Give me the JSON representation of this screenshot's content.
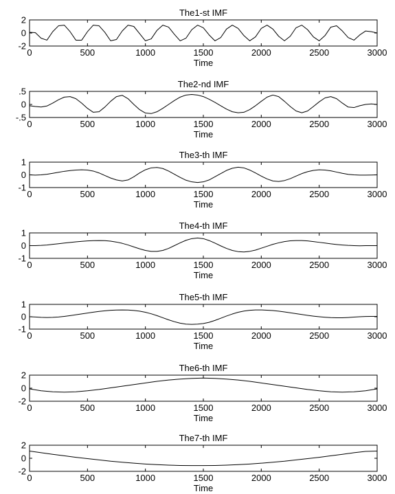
{
  "chart_data": [
    {
      "type": "line",
      "title": "The1-st IMF",
      "xlabel": "Time",
      "ylabel": "",
      "xlim": [
        0,
        3000
      ],
      "ylim": [
        -2,
        2
      ],
      "xticks": [
        0,
        500,
        1000,
        1500,
        2000,
        2500,
        3000
      ],
      "yticks": [
        -2,
        0,
        2
      ],
      "grid": false,
      "series": [
        {
          "color": "#000000",
          "x": [
            0,
            50,
            100,
            150,
            200,
            250,
            300,
            350,
            400,
            450,
            500,
            550,
            600,
            650,
            700,
            750,
            800,
            850,
            900,
            950,
            1000,
            1050,
            1100,
            1150,
            1200,
            1250,
            1300,
            1350,
            1400,
            1450,
            1500,
            1550,
            1600,
            1650,
            1700,
            1750,
            1800,
            1850,
            1900,
            1950,
            2000,
            2050,
            2100,
            2150,
            2200,
            2250,
            2300,
            2350,
            2400,
            2450,
            2500,
            2550,
            2600,
            2650,
            2700,
            2750,
            2800,
            2850,
            2900,
            2950,
            3000
          ],
          "y": [
            0.1,
            0.05,
            -0.8,
            -1.1,
            0.2,
            1.1,
            1.2,
            0.2,
            -1.1,
            -1.1,
            0.2,
            1.2,
            1.1,
            0.1,
            -1.2,
            -1.0,
            0.3,
            1.2,
            1.0,
            -0.1,
            -1.2,
            -0.9,
            0.4,
            1.2,
            0.9,
            -0.2,
            -1.2,
            -0.8,
            0.5,
            1.2,
            0.8,
            -0.3,
            -1.2,
            -0.7,
            0.6,
            1.2,
            0.7,
            -0.4,
            -1.2,
            -0.6,
            0.7,
            1.2,
            0.6,
            -0.5,
            -1.2,
            -0.5,
            0.8,
            1.2,
            0.5,
            -0.6,
            -1.2,
            -0.4,
            0.9,
            1.1,
            0.3,
            -0.7,
            -1.1,
            -0.3,
            0.3,
            0.2,
            0.0
          ]
        }
      ]
    },
    {
      "type": "line",
      "title": "The2-nd IMF",
      "xlabel": "Time",
      "ylabel": "",
      "xlim": [
        0,
        3000
      ],
      "ylim": [
        -0.5,
        0.5
      ],
      "xticks": [
        0,
        500,
        1000,
        1500,
        2000,
        2500,
        3000
      ],
      "yticks": [
        -0.5,
        0,
        0.5
      ],
      "grid": false,
      "series": [
        {
          "color": "#000000",
          "x": [
            0,
            50,
            100,
            150,
            200,
            250,
            300,
            350,
            400,
            450,
            500,
            550,
            600,
            650,
            700,
            750,
            800,
            850,
            900,
            950,
            1000,
            1050,
            1100,
            1150,
            1200,
            1250,
            1300,
            1350,
            1400,
            1450,
            1500,
            1550,
            1600,
            1650,
            1700,
            1750,
            1800,
            1850,
            1900,
            1950,
            2000,
            2050,
            2100,
            2150,
            2200,
            2250,
            2300,
            2350,
            2400,
            2450,
            2500,
            2550,
            2600,
            2650,
            2700,
            2750,
            2800,
            2850,
            2900,
            2950,
            3000
          ],
          "y": [
            -0.05,
            -0.08,
            -0.1,
            -0.06,
            0.05,
            0.18,
            0.28,
            0.3,
            0.22,
            0.05,
            -0.15,
            -0.3,
            -0.28,
            -0.1,
            0.12,
            0.3,
            0.35,
            0.22,
            0.0,
            -0.2,
            -0.33,
            -0.35,
            -0.28,
            -0.15,
            0.0,
            0.15,
            0.28,
            0.36,
            0.38,
            0.36,
            0.3,
            0.2,
            0.08,
            -0.05,
            -0.18,
            -0.28,
            -0.32,
            -0.3,
            -0.2,
            -0.05,
            0.12,
            0.28,
            0.36,
            0.3,
            0.12,
            -0.08,
            -0.25,
            -0.32,
            -0.25,
            -0.08,
            0.1,
            0.25,
            0.3,
            0.22,
            0.05,
            -0.1,
            -0.12,
            -0.05,
            0.0,
            0.02,
            0.0
          ]
        }
      ]
    },
    {
      "type": "line",
      "title": "The3-th IMF",
      "xlabel": "Time",
      "ylabel": "",
      "xlim": [
        0,
        3000
      ],
      "ylim": [
        -1,
        1
      ],
      "xticks": [
        0,
        500,
        1000,
        1500,
        2000,
        2500,
        3000
      ],
      "yticks": [
        -1,
        0,
        1
      ],
      "grid": false,
      "series": [
        {
          "color": "#000000",
          "x": [
            0,
            50,
            100,
            150,
            200,
            250,
            300,
            350,
            400,
            450,
            500,
            550,
            600,
            650,
            700,
            750,
            800,
            850,
            900,
            950,
            1000,
            1050,
            1100,
            1150,
            1200,
            1250,
            1300,
            1350,
            1400,
            1450,
            1500,
            1550,
            1600,
            1650,
            1700,
            1750,
            1800,
            1850,
            1900,
            1950,
            2000,
            2050,
            2100,
            2150,
            2200,
            2250,
            2300,
            2350,
            2400,
            2450,
            2500,
            2550,
            2600,
            2650,
            2700,
            2750,
            2800,
            2850,
            2900,
            2950,
            3000
          ],
          "y": [
            0.0,
            -0.02,
            0.0,
            0.05,
            0.12,
            0.2,
            0.28,
            0.34,
            0.38,
            0.4,
            0.38,
            0.3,
            0.15,
            -0.05,
            -0.25,
            -0.4,
            -0.48,
            -0.4,
            -0.15,
            0.15,
            0.4,
            0.55,
            0.58,
            0.5,
            0.3,
            0.05,
            -0.2,
            -0.42,
            -0.55,
            -0.6,
            -0.55,
            -0.4,
            -0.15,
            0.1,
            0.35,
            0.52,
            0.6,
            0.55,
            0.38,
            0.15,
            -0.1,
            -0.32,
            -0.48,
            -0.52,
            -0.45,
            -0.3,
            -0.1,
            0.1,
            0.25,
            0.35,
            0.4,
            0.38,
            0.32,
            0.22,
            0.12,
            0.04,
            0.0,
            -0.02,
            -0.02,
            -0.01,
            0.0
          ]
        }
      ]
    },
    {
      "type": "line",
      "title": "The4-th IMF",
      "xlabel": "Time",
      "ylabel": "",
      "xlim": [
        0,
        3000
      ],
      "ylim": [
        -1,
        1
      ],
      "xticks": [
        0,
        500,
        1000,
        1500,
        2000,
        2500,
        3000
      ],
      "yticks": [
        -1,
        0,
        1
      ],
      "grid": false,
      "series": [
        {
          "color": "#000000",
          "x": [
            0,
            50,
            100,
            150,
            200,
            250,
            300,
            350,
            400,
            450,
            500,
            550,
            600,
            650,
            700,
            750,
            800,
            850,
            900,
            950,
            1000,
            1050,
            1100,
            1150,
            1200,
            1250,
            1300,
            1350,
            1400,
            1450,
            1500,
            1550,
            1600,
            1650,
            1700,
            1750,
            1800,
            1850,
            1900,
            1950,
            2000,
            2050,
            2100,
            2150,
            2200,
            2250,
            2300,
            2350,
            2400,
            2450,
            2500,
            2550,
            2600,
            2650,
            2700,
            2750,
            2800,
            2850,
            2900,
            2950,
            3000
          ],
          "y": [
            0.0,
            0.0,
            0.02,
            0.05,
            0.1,
            0.15,
            0.2,
            0.25,
            0.3,
            0.34,
            0.37,
            0.39,
            0.4,
            0.39,
            0.35,
            0.28,
            0.18,
            0.05,
            -0.1,
            -0.25,
            -0.38,
            -0.45,
            -0.45,
            -0.38,
            -0.22,
            0.0,
            0.22,
            0.42,
            0.55,
            0.6,
            0.55,
            0.4,
            0.2,
            -0.02,
            -0.22,
            -0.38,
            -0.47,
            -0.5,
            -0.45,
            -0.35,
            -0.2,
            -0.05,
            0.1,
            0.22,
            0.32,
            0.38,
            0.4,
            0.4,
            0.37,
            0.32,
            0.26,
            0.2,
            0.14,
            0.09,
            0.05,
            0.02,
            0.0,
            -0.01,
            0.0,
            0.0,
            0.0
          ]
        }
      ]
    },
    {
      "type": "line",
      "title": "The5-th IMF",
      "xlabel": "Time",
      "ylabel": "",
      "xlim": [
        0,
        3000
      ],
      "ylim": [
        -1,
        1
      ],
      "xticks": [
        0,
        500,
        1000,
        1500,
        2000,
        2500,
        3000
      ],
      "yticks": [
        -1,
        0,
        1
      ],
      "grid": false,
      "series": [
        {
          "color": "#000000",
          "x": [
            0,
            50,
            100,
            150,
            200,
            250,
            300,
            350,
            400,
            450,
            500,
            550,
            600,
            650,
            700,
            750,
            800,
            850,
            900,
            950,
            1000,
            1050,
            1100,
            1150,
            1200,
            1250,
            1300,
            1350,
            1400,
            1450,
            1500,
            1550,
            1600,
            1650,
            1700,
            1750,
            1800,
            1850,
            1900,
            1950,
            2000,
            2050,
            2100,
            2150,
            2200,
            2250,
            2300,
            2350,
            2400,
            2450,
            2500,
            2550,
            2600,
            2650,
            2700,
            2750,
            2800,
            2850,
            2900,
            2950,
            3000
          ],
          "y": [
            0.0,
            -0.02,
            -0.05,
            -0.06,
            -0.05,
            -0.02,
            0.03,
            0.09,
            0.16,
            0.23,
            0.3,
            0.37,
            0.43,
            0.48,
            0.52,
            0.54,
            0.55,
            0.54,
            0.51,
            0.45,
            0.36,
            0.24,
            0.09,
            -0.08,
            -0.25,
            -0.4,
            -0.52,
            -0.6,
            -0.62,
            -0.6,
            -0.55,
            -0.45,
            -0.3,
            -0.12,
            0.06,
            0.22,
            0.36,
            0.46,
            0.52,
            0.55,
            0.55,
            0.53,
            0.5,
            0.45,
            0.39,
            0.32,
            0.25,
            0.18,
            0.11,
            0.05,
            0.0,
            -0.04,
            -0.07,
            -0.08,
            -0.08,
            -0.06,
            -0.03,
            0.0,
            0.02,
            0.03,
            0.03
          ]
        }
      ]
    },
    {
      "type": "line",
      "title": "The6-th IMF",
      "xlabel": "Time",
      "ylabel": "",
      "xlim": [
        0,
        3000
      ],
      "ylim": [
        -2,
        2
      ],
      "xticks": [
        0,
        500,
        1000,
        1500,
        2000,
        2500,
        3000
      ],
      "yticks": [
        -2,
        0,
        2
      ],
      "grid": false,
      "series": [
        {
          "color": "#000000",
          "x": [
            0,
            100,
            200,
            300,
            400,
            500,
            600,
            700,
            800,
            900,
            1000,
            1100,
            1200,
            1300,
            1400,
            1500,
            1600,
            1700,
            1800,
            1900,
            2000,
            2100,
            2200,
            2300,
            2400,
            2500,
            2600,
            2700,
            2800,
            2900,
            3000
          ],
          "y": [
            -0.1,
            -0.4,
            -0.55,
            -0.6,
            -0.55,
            -0.4,
            -0.2,
            0.05,
            0.3,
            0.55,
            0.8,
            1.05,
            1.25,
            1.4,
            1.5,
            1.55,
            1.5,
            1.4,
            1.25,
            1.05,
            0.8,
            0.55,
            0.3,
            0.05,
            -0.2,
            -0.4,
            -0.55,
            -0.6,
            -0.55,
            -0.4,
            -0.1
          ]
        }
      ]
    },
    {
      "type": "line",
      "title": "The7-th IMF",
      "xlabel": "Time",
      "ylabel": "",
      "xlim": [
        0,
        3000
      ],
      "ylim": [
        -2,
        2
      ],
      "xticks": [
        0,
        500,
        1000,
        1500,
        2000,
        2500,
        3000
      ],
      "yticks": [
        -2,
        0,
        2
      ],
      "grid": false,
      "series": [
        {
          "color": "#000000",
          "x": [
            0,
            100,
            200,
            300,
            400,
            500,
            600,
            700,
            800,
            900,
            1000,
            1100,
            1200,
            1300,
            1400,
            1500,
            1600,
            1700,
            1800,
            1900,
            2000,
            2100,
            2200,
            2300,
            2400,
            2500,
            2600,
            2700,
            2800,
            2900,
            3000
          ],
          "y": [
            1.1,
            0.85,
            0.6,
            0.38,
            0.15,
            -0.05,
            -0.25,
            -0.45,
            -0.6,
            -0.75,
            -0.88,
            -0.98,
            -1.05,
            -1.1,
            -1.12,
            -1.12,
            -1.1,
            -1.05,
            -0.98,
            -0.88,
            -0.75,
            -0.6,
            -0.45,
            -0.25,
            -0.05,
            0.15,
            0.38,
            0.6,
            0.85,
            1.05,
            1.1
          ]
        }
      ]
    }
  ]
}
